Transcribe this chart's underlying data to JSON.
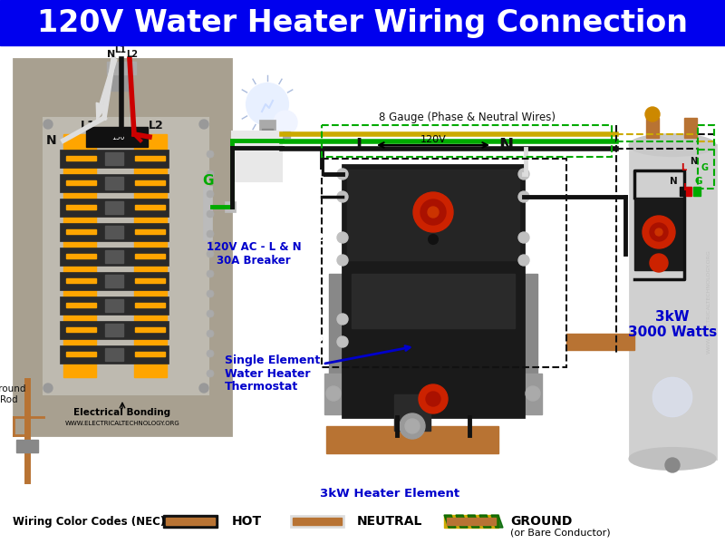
{
  "title": "120V Water Heater Wiring Connection",
  "title_bg": "#0000EE",
  "title_color": "#FFFFFF",
  "title_fontsize": 26,
  "bg_color": "#FFFFFF",
  "panel_bg": "#A8A090",
  "panel_inner_bg": "#C0B8A8",
  "panel_border": "#333333",
  "bus_color": "#FFA500",
  "wire_black": "#111111",
  "wire_white": "#DDDDDD",
  "wire_red": "#CC0000",
  "wire_green": "#00AA00",
  "wire_copper": "#B87333",
  "thermostat_body": "#1A1A1A",
  "tank_bg": "#D4D4D4",
  "tank_border": "#999999",
  "label_blue": "#0000CC",
  "label_black": "#000000",
  "note_text": "8 Gauge (Phase & Neutral Wires)",
  "bottom_label1": "Wiring Color Codes (NEC)",
  "bottom_label2": "HOT",
  "bottom_label3": "NEUTRAL",
  "bottom_label4": "GROUND",
  "bottom_label5": "(or Bare Conductor)",
  "ground_rod_label": "Ground\nRod",
  "panel_bottom_label": "Electrical Bonding",
  "panel_bottom_sub": "WWW.ELECTRICALTECHNOLOGY.ORG",
  "watermark": "WWW.ELECTRICALTECHNOLOGY.ORG",
  "label_120v_ac": "120V AC - L & N\n30A Breaker",
  "label_thermostat": "Single Element\nWater Heater\nThermostat",
  "label_element": "3kW Heater Element",
  "label_3kw": "3kW\n3000 Watts"
}
